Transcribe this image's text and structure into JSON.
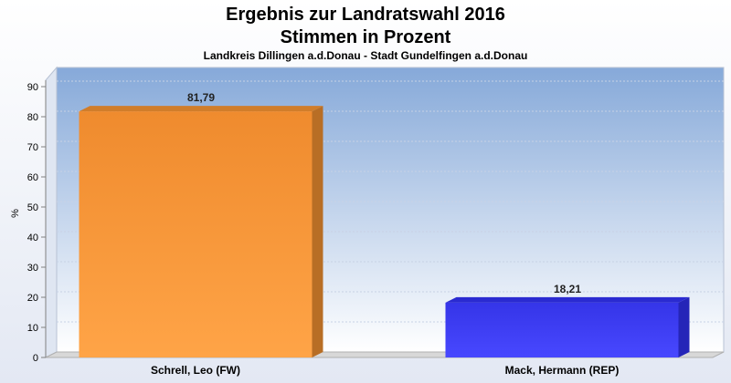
{
  "chart_data": {
    "type": "bar",
    "title": "Ergebnis zur Landratswahl 2016",
    "title_line2": "Stimmen in Prozent",
    "subtitle": "Landkreis Dillingen a.d.Donau - Stadt Gundelfingen a.d.Donau",
    "ylabel": "%",
    "ylim": [
      0,
      95
    ],
    "yticks": [
      "0",
      "10",
      "20",
      "30",
      "40",
      "50",
      "60",
      "70",
      "80",
      "90"
    ],
    "categories": [
      "Schrell, Leo (FW)",
      "Mack, Hermann (REP)"
    ],
    "values": [
      81.79,
      18.21
    ],
    "value_labels": [
      "81,79",
      "18,21"
    ],
    "colors": [
      "#ff9933",
      "#3333ff"
    ],
    "grid": true,
    "legend": "none"
  }
}
